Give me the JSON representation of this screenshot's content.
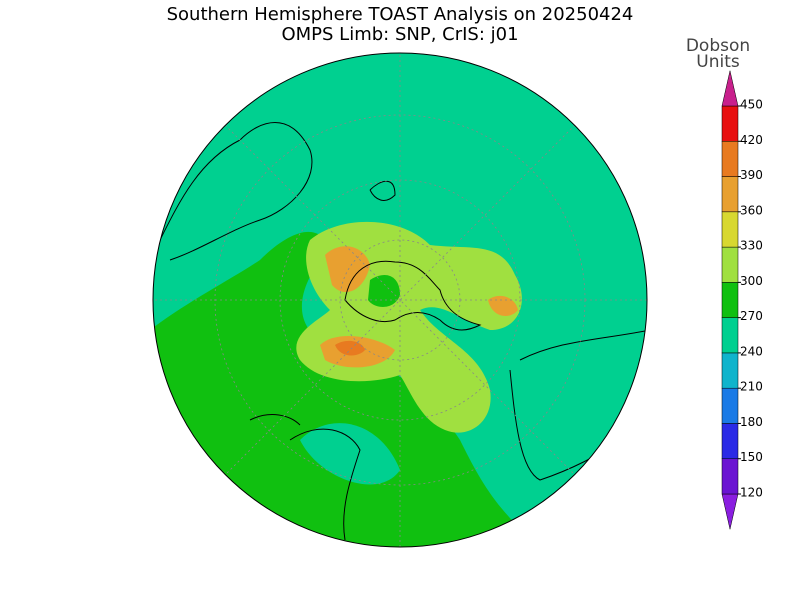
{
  "header": {
    "title": "Southern Hemisphere TOAST Analysis on 20250424",
    "subtitle": "OMPS Limb: SNP, CrIS: j01"
  },
  "colorbar": {
    "label": [
      "Dobson",
      "Units"
    ],
    "ticks": [
      120,
      150,
      180,
      210,
      240,
      270,
      300,
      330,
      360,
      390,
      420,
      450
    ],
    "colors": [
      "#8a1ee0",
      "#6a14d2",
      "#2a2ae6",
      "#1a7ae6",
      "#10b4cc",
      "#00d090",
      "#10c010",
      "#a0e040",
      "#d8d830",
      "#e8a030",
      "#e87a20",
      "#e81010",
      "#c8208c"
    ]
  }
}
